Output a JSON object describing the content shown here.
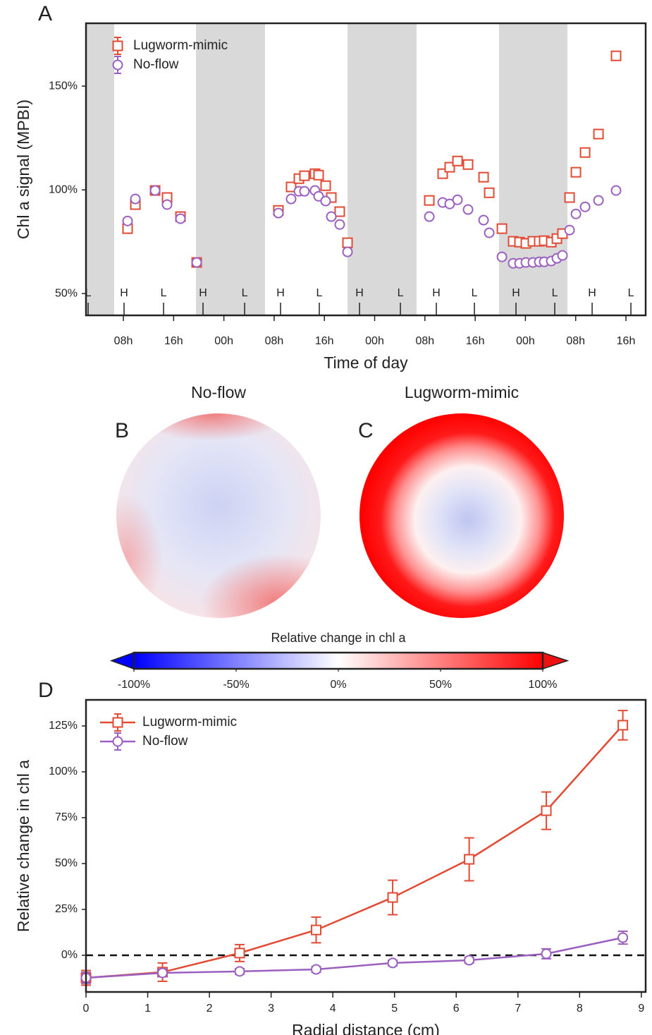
{
  "chart_data": [
    {
      "type": "scatter",
      "panel": "A",
      "xlabel": "Time of day",
      "ylabel": "Chl a signal (MPBI)",
      "xlim": [
        2.05,
        91.14
      ],
      "ylim": [
        39.5,
        180.3
      ],
      "xticks": [
        {
          "value": 8,
          "label": "08h"
        },
        {
          "value": 16,
          "label": "16h"
        },
        {
          "value": 24,
          "label": "00h"
        },
        {
          "value": 32,
          "label": "08h"
        },
        {
          "value": 40,
          "label": "16h"
        },
        {
          "value": 48,
          "label": "00h"
        },
        {
          "value": 56,
          "label": "08h"
        },
        {
          "value": 64,
          "label": "16h"
        },
        {
          "value": 72,
          "label": "00h"
        },
        {
          "value": 80,
          "label": "08h"
        },
        {
          "value": 88,
          "label": "16h"
        }
      ],
      "yticks": [
        {
          "value": 50,
          "label": "50%"
        },
        {
          "value": 100,
          "label": "100%"
        },
        {
          "value": 150,
          "label": "150%"
        }
      ],
      "nights": [
        [
          2.05,
          6.54
        ],
        [
          19.56,
          30.55
        ],
        [
          43.68,
          54.68
        ],
        [
          67.8,
          78.69
        ]
      ],
      "tides": [
        {
          "label": "L",
          "x": 2.39
        },
        {
          "label": "H",
          "x": 8.11
        },
        {
          "label": "L",
          "x": 14.4
        },
        {
          "label": "H",
          "x": 20.68
        },
        {
          "label": "L",
          "x": 27.3
        },
        {
          "label": "H",
          "x": 33.02
        },
        {
          "label": "L",
          "x": 39.19
        },
        {
          "label": "H",
          "x": 45.59
        },
        {
          "label": "L",
          "x": 52.1
        },
        {
          "label": "H",
          "x": 57.82
        },
        {
          "label": "L",
          "x": 63.88
        },
        {
          "label": "H",
          "x": 70.5
        },
        {
          "label": "L",
          "x": 76.67
        },
        {
          "label": "H",
          "x": 82.62
        },
        {
          "label": "L",
          "x": 88.79
        }
      ],
      "legend": "upper left",
      "x": [
        8.67,
        9.91,
        13.05,
        14.96,
        17.09,
        19.67,
        32.68,
        34.7,
        35.94,
        36.83,
        38.5,
        39.08,
        40.2,
        41.1,
        42.44,
        43.68,
        56.7,
        58.83,
        59.95,
        61.19,
        62.87,
        65.34,
        66.24,
        68.26,
        70.05,
        71.06,
        72.07,
        73.19,
        74.2,
        74.99,
        76.11,
        77.01,
        77.9,
        79.03,
        80.04,
        81.5,
        83.63,
        86.43
      ],
      "series": [
        {
          "name": "Lugworm-mimic",
          "color": "#e24a33",
          "marker": "square",
          "values": [
            81.3,
            92.9,
            99.7,
            96.3,
            87.1,
            65.0,
            90.1,
            101.4,
            105.4,
            106.8,
            107.8,
            107.1,
            102.0,
            96.3,
            89.5,
            74.5,
            94.9,
            107.8,
            110.9,
            113.9,
            112.2,
            106.1,
            98.6,
            81.3,
            75.2,
            74.8,
            74.2,
            75.2,
            75.2,
            75.5,
            74.8,
            76.5,
            78.9,
            96.3,
            108.5,
            118.0,
            126.9,
            164.6
          ]
        },
        {
          "name": "No-flow",
          "color": "#9b5fc0",
          "marker": "circle",
          "values": [
            85.0,
            95.6,
            99.7,
            92.9,
            86.1,
            65.0,
            88.8,
            95.6,
            99.3,
            99.3,
            99.7,
            96.9,
            94.6,
            87.1,
            83.3,
            70.1,
            87.1,
            93.9,
            93.2,
            95.2,
            90.5,
            85.4,
            79.3,
            67.7,
            64.6,
            64.6,
            65.0,
            65.0,
            65.3,
            65.3,
            65.7,
            67.0,
            68.4,
            80.6,
            88.4,
            91.8,
            94.9,
            99.7
          ]
        }
      ]
    },
    {
      "type": "heatmap",
      "panel": "B",
      "title": "No-flow"
    },
    {
      "type": "heatmap",
      "panel": "C",
      "title": "Lugworm-mimic"
    },
    {
      "type": "colorbar",
      "label": "Relative change in chl a",
      "xlim": [
        -100,
        100
      ],
      "xticks": [
        {
          "value": -100,
          "label": "-100%"
        },
        {
          "value": -50,
          "label": "-50%"
        },
        {
          "value": 0,
          "label": "0%"
        },
        {
          "value": 50,
          "label": "50%"
        },
        {
          "value": 100,
          "label": "100%"
        }
      ]
    },
    {
      "type": "line",
      "panel": "D",
      "xlabel": "Radial distance (cm)",
      "ylabel": "Relative change in chl a",
      "xlim": [
        0,
        9.07
      ],
      "ylim": [
        -20,
        139.2
      ],
      "xticks": [
        0,
        1,
        2,
        3,
        4,
        5,
        6,
        7,
        8,
        9
      ],
      "yticks": [
        {
          "value": 0,
          "label": "0%"
        },
        {
          "value": 25,
          "label": "25%"
        },
        {
          "value": 50,
          "label": "50%"
        },
        {
          "value": 75,
          "label": "75%"
        },
        {
          "value": 100,
          "label": "100%"
        },
        {
          "value": 125,
          "label": "125%"
        }
      ],
      "hline": 0,
      "legend": "upper left",
      "x": [
        0,
        1.24,
        2.49,
        3.73,
        4.97,
        6.21,
        7.46,
        8.7
      ],
      "series": [
        {
          "name": "Lugworm-mimic",
          "color": "#e24a33",
          "marker": "square",
          "values": [
            -12.3,
            -9.2,
            1.2,
            13.8,
            31.5,
            52.3,
            78.8,
            125.4
          ],
          "errors": [
            4,
            5,
            4.6,
            7,
            9.4,
            11.7,
            10.2,
            8
          ]
        },
        {
          "name": "No-flow",
          "color": "#9b5fc0",
          "marker": "circle",
          "values": [
            -12.3,
            -9.6,
            -8.8,
            -7.7,
            -4.2,
            -2.7,
            0.8,
            9.6
          ],
          "errors": [
            3,
            2,
            1.5,
            1.5,
            1.5,
            1.5,
            2.7,
            3.5
          ]
        }
      ]
    }
  ]
}
